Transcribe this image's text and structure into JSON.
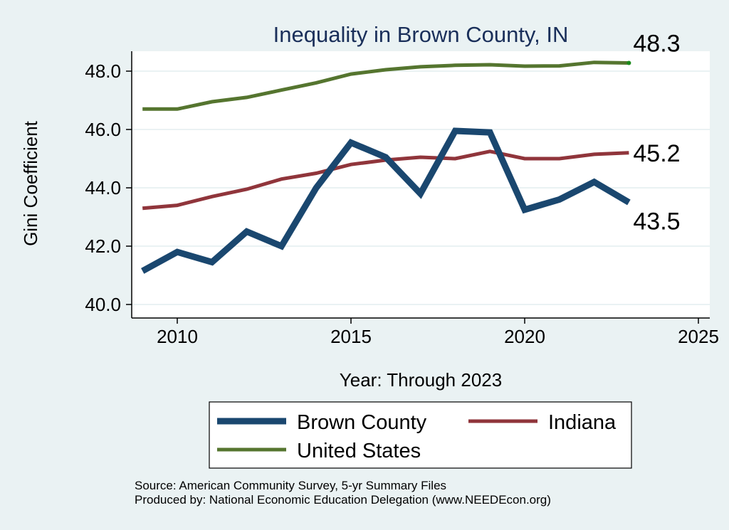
{
  "chart_data": {
    "type": "line",
    "title": "Inequality in Brown County, IN",
    "xlabel": "Year: Through 2023",
    "ylabel": "Gini Coefficient",
    "xlim": [
      2009,
      2025
    ],
    "ylim": [
      40.0,
      48.6
    ],
    "xticks": [
      2010,
      2015,
      2020,
      2025
    ],
    "yticks": [
      40.0,
      42.0,
      44.0,
      46.0,
      48.0
    ],
    "ytick_labels": [
      "40.0",
      "42.0",
      "44.0",
      "46.0",
      "48.0"
    ],
    "xtick_labels": [
      "2010",
      "2015",
      "2020",
      "2025"
    ],
    "grid": true,
    "x": [
      2009,
      2010,
      2011,
      2012,
      2013,
      2014,
      2015,
      2016,
      2017,
      2018,
      2019,
      2020,
      2021,
      2022,
      2023
    ],
    "series": [
      {
        "name": "Brown County",
        "color": "#1a476f",
        "values": [
          41.15,
          41.8,
          41.45,
          42.5,
          42.0,
          44.0,
          45.55,
          45.05,
          43.8,
          45.95,
          45.9,
          43.25,
          43.6,
          44.2,
          43.5
        ],
        "end_label": "43.5"
      },
      {
        "name": "Indiana",
        "color": "#90353b",
        "values": [
          43.3,
          43.4,
          43.7,
          43.95,
          44.3,
          44.5,
          44.8,
          44.95,
          45.05,
          45.0,
          45.25,
          45.0,
          45.0,
          45.15,
          45.2
        ],
        "end_label": "45.2"
      },
      {
        "name": "United States",
        "color": "#55752f",
        "values": [
          46.7,
          46.7,
          46.95,
          47.1,
          47.35,
          47.6,
          47.9,
          48.05,
          48.15,
          48.2,
          48.22,
          48.17,
          48.18,
          48.3,
          48.28
        ],
        "end_label": "48.3"
      }
    ],
    "legend": {
      "position": "bottom",
      "entries": [
        "Brown County",
        "Indiana",
        "United States"
      ]
    },
    "notes": [
      "Source: American Community Survey, 5-yr Summary Files",
      "Produced by: National Economic Education Delegation (www.NEEDEcon.org)"
    ]
  }
}
